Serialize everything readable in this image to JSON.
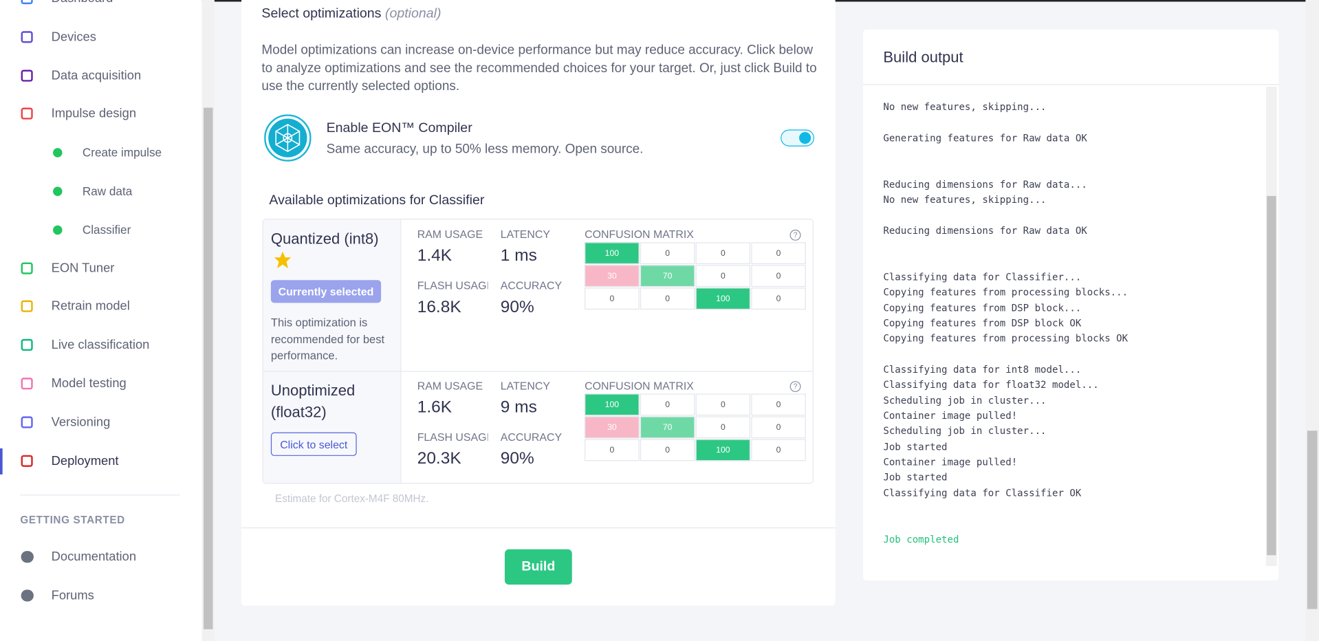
{
  "sidebar": {
    "nav": [
      "Dashboard",
      "Devices",
      "Data acquisition",
      "Impulse design",
      "Create impulse",
      "Raw data",
      "Classifier",
      "EON Tuner",
      "Retrain model",
      "Live classification",
      "Model testing",
      "Versioning",
      "Deployment"
    ],
    "section_title": "GETTING STARTED",
    "links": [
      "Documentation",
      "Forums"
    ]
  },
  "optimizations": {
    "title": "Select optimizations",
    "title_note": "(optional)",
    "description": "Model optimizations can increase on-device performance but may reduce accuracy. Click below to analyze optimizations and see the recommended choices for your target. Or, just click Build to use the currently selected options.",
    "eon": {
      "title": "Enable EON™ Compiler",
      "subtitle": "Same accuracy, up to 50% less memory. Open source."
    },
    "available_title": "Available optimizations for Classifier",
    "options": [
      {
        "name": "Quantized (int8)",
        "button": "Currently selected",
        "note": "This optimization is recommended for best performance.",
        "metrics": [
          {
            "label": "RAM USAGE",
            "value": "1.4K"
          },
          {
            "label": "LATENCY",
            "value": "1 ms"
          },
          {
            "label": "FLASH USAGE",
            "value": "16.8K"
          },
          {
            "label": "ACCURACY",
            "value": "90%"
          }
        ],
        "matrix_title": "CONFUSION MATRIX",
        "matrix": [
          [
            100,
            0,
            0,
            0
          ],
          [
            30,
            70,
            0,
            0
          ],
          [
            0,
            0,
            100,
            0
          ]
        ]
      },
      {
        "name": "Unoptimized (float32)",
        "button": "Click to select",
        "metrics": [
          {
            "label": "RAM USAGE",
            "value": "1.6K"
          },
          {
            "label": "LATENCY",
            "value": "9 ms"
          },
          {
            "label": "FLASH USAGE",
            "value": "20.3K"
          },
          {
            "label": "ACCURACY",
            "value": "90%"
          }
        ],
        "matrix_title": "CONFUSION MATRIX",
        "matrix": [
          [
            100,
            0,
            0,
            0
          ],
          [
            30,
            70,
            0,
            0
          ],
          [
            0,
            0,
            100,
            0
          ]
        ]
      }
    ],
    "estimate": "Estimate for Cortex-M4F 80MHz.",
    "build_button": "Build"
  },
  "build_output": {
    "title": "Build output",
    "log": [
      [
        "No new features, skipping..."
      ],
      [
        "Generating features for Raw data OK"
      ],
      [
        "Reducing dimensions for Raw data...",
        "No new features, skipping..."
      ],
      [
        "Reducing dimensions for Raw data OK"
      ],
      [
        "Classifying data for Classifier...",
        "Copying features from processing blocks...",
        "Copying features from DSP block...",
        "Copying features from DSP block OK",
        "Copying features from processing blocks OK"
      ],
      [
        "Classifying data for int8 model...",
        "Classifying data for float32 model...",
        "Scheduling job in cluster...",
        "Container image pulled!",
        "Scheduling job in cluster...",
        "Job started",
        "Container image pulled!",
        "Job started",
        "Classifying data for Classifier OK"
      ],
      [
        "Job completed"
      ]
    ]
  }
}
